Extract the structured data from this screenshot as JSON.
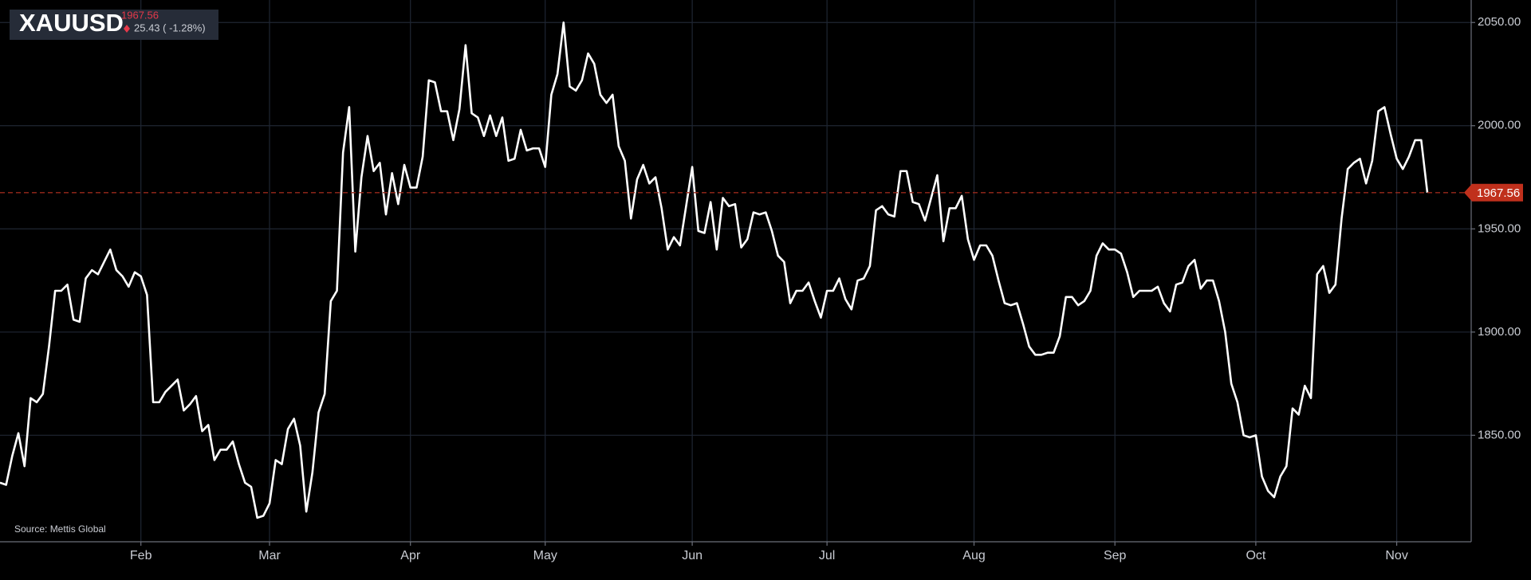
{
  "chart_data": {
    "type": "line",
    "title": "XAUUSD",
    "last_price": 1967.56,
    "change_label": "25.43 ( -1.28%)",
    "source": "Source: Mettis Global",
    "ylim": [
      1798.4,
      2060.9
    ],
    "yticks": [
      {
        "value": 1850,
        "label": "1850.00"
      },
      {
        "value": 1900,
        "label": "1900.00"
      },
      {
        "value": 1950,
        "label": "1950.00"
      },
      {
        "value": 2000,
        "label": "2000.00"
      },
      {
        "value": 2050,
        "label": "2050.00"
      }
    ],
    "grid": true,
    "categories": [
      null,
      null,
      null,
      null,
      null,
      null,
      null,
      null,
      null,
      null,
      null,
      null,
      null,
      null,
      null,
      null,
      null,
      null,
      null,
      null,
      null,
      null,
      null,
      "Feb",
      null,
      null,
      null,
      null,
      null,
      null,
      null,
      null,
      null,
      null,
      null,
      null,
      null,
      null,
      null,
      null,
      null,
      null,
      null,
      null,
      "Mar",
      null,
      null,
      null,
      null,
      null,
      null,
      null,
      null,
      null,
      null,
      null,
      null,
      null,
      null,
      null,
      null,
      null,
      null,
      null,
      null,
      null,
      null,
      "Apr",
      null,
      null,
      null,
      null,
      null,
      null,
      null,
      null,
      null,
      null,
      null,
      null,
      null,
      null,
      null,
      null,
      null,
      null,
      null,
      null,
      null,
      "May",
      null,
      null,
      null,
      null,
      null,
      null,
      null,
      null,
      null,
      null,
      null,
      null,
      null,
      null,
      null,
      null,
      null,
      null,
      null,
      null,
      null,
      null,
      null,
      "Jun",
      null,
      null,
      null,
      null,
      null,
      null,
      null,
      null,
      null,
      null,
      null,
      null,
      null,
      null,
      null,
      null,
      null,
      null,
      null,
      null,
      null,
      "Jul",
      null,
      null,
      null,
      null,
      null,
      null,
      null,
      null,
      null,
      null,
      null,
      null,
      null,
      null,
      null,
      null,
      null,
      null,
      null,
      null,
      null,
      null,
      null,
      "Aug",
      null,
      null,
      null,
      null,
      null,
      null,
      null,
      null,
      null,
      null,
      null,
      null,
      null,
      null,
      null,
      null,
      null,
      null,
      null,
      null,
      null,
      null,
      "Sep",
      null,
      null,
      null,
      null,
      null,
      null,
      null,
      null,
      null,
      null,
      null,
      null,
      null,
      null,
      null,
      null,
      null,
      null,
      null,
      null,
      null,
      null,
      "Oct",
      null,
      null,
      null,
      null,
      null,
      null,
      null,
      null,
      null,
      null,
      null,
      null,
      null,
      null,
      null,
      null,
      null,
      null,
      null,
      null,
      null,
      null,
      "Nov",
      null,
      null,
      null,
      null,
      null
    ],
    "series": [
      {
        "name": "XAUUSD",
        "color": "#ffffff",
        "values": [
          1827,
          1826,
          1840,
          1851,
          1835,
          1868,
          1866,
          1870,
          1893,
          1920,
          1920,
          1923,
          1906,
          1905,
          1926,
          1930,
          1928,
          1934,
          1940,
          1930,
          1927,
          1922,
          1929,
          1927,
          1918,
          1866,
          1866,
          1871,
          1874,
          1877,
          1862,
          1865,
          1869,
          1852,
          1855,
          1838,
          1843,
          1843,
          1847,
          1836,
          1827,
          1825,
          1810,
          1811,
          1817,
          1838,
          1836,
          1853,
          1858,
          1845,
          1813,
          1832,
          1861,
          1870,
          1915,
          1920,
          1987,
          2009,
          1939,
          1975,
          1995,
          1978,
          1982,
          1957,
          1977,
          1962,
          1981,
          1970,
          1970,
          1985,
          2022,
          2021,
          2007,
          2007,
          1993,
          2008,
          2039,
          2006,
          2004,
          1995,
          2005,
          1995,
          2004,
          1983,
          1984,
          1998,
          1988,
          1989,
          1989,
          1980,
          2015,
          2025,
          2050,
          2019,
          2017,
          2022,
          2035,
          2030,
          2015,
          2011,
          2015,
          1990,
          1983,
          1955,
          1974,
          1981,
          1972,
          1975,
          1960,
          1940,
          1946,
          1942,
          1961,
          1980,
          1949,
          1948,
          1963,
          1940,
          1965,
          1961,
          1962,
          1941,
          1945,
          1958,
          1957,
          1958,
          1949,
          1937,
          1934,
          1914,
          1920,
          1920,
          1924,
          1915,
          1907,
          1920,
          1920,
          1926,
          1916,
          1911,
          1925,
          1926,
          1932,
          1959,
          1961,
          1957,
          1956,
          1978,
          1978,
          1963,
          1962,
          1954,
          1965,
          1976,
          1944,
          1960,
          1960,
          1966,
          1945,
          1935,
          1942,
          1942,
          1937,
          1925,
          1914,
          1913,
          1914,
          1904,
          1893,
          1889,
          1889,
          1890,
          1890,
          1898,
          1917,
          1917,
          1913,
          1915,
          1920,
          1937,
          1943,
          1940,
          1940,
          1938,
          1929,
          1917,
          1920,
          1920,
          1920,
          1922,
          1914,
          1910,
          1923,
          1924,
          1932,
          1935,
          1921,
          1925,
          1925,
          1915,
          1900,
          1875,
          1866,
          1850,
          1849,
          1850,
          1830,
          1823,
          1820,
          1830,
          1835,
          1863,
          1860,
          1874,
          1868,
          1928,
          1932,
          1919,
          1923,
          1955,
          1979,
          1982,
          1984,
          1972,
          1983,
          2007,
          2009,
          1996,
          1984,
          1979,
          1985,
          1993,
          1993,
          1967.56
        ]
      }
    ]
  }
}
